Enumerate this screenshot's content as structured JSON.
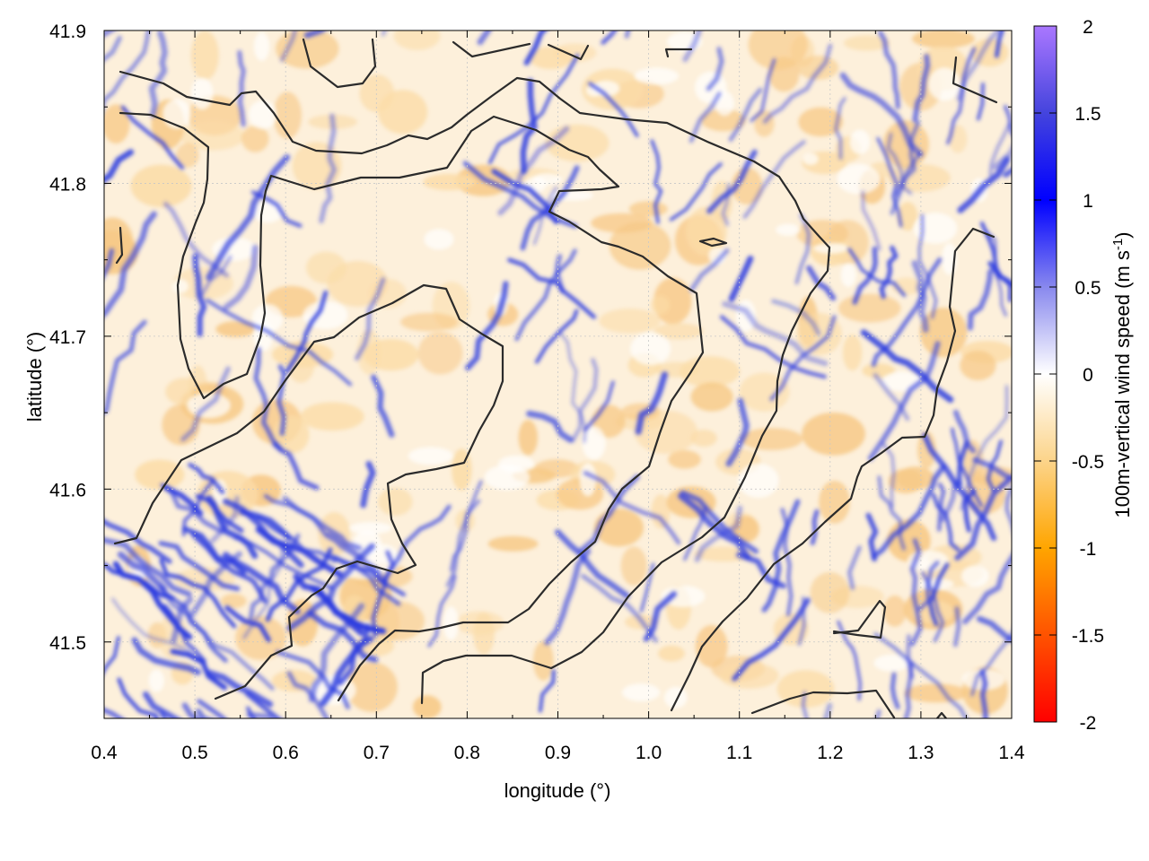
{
  "chart_data": {
    "type": "heatmap",
    "title": "",
    "xlabel": "longitude (°)",
    "ylabel": "latitude (°)",
    "xlim": [
      0.4,
      1.4
    ],
    "ylim": [
      41.45,
      41.9
    ],
    "x_ticks": [
      "0.4",
      "0.5",
      "0.6",
      "0.7",
      "0.8",
      "0.9",
      "1.0",
      "1.1",
      "1.2",
      "1.3",
      "1.4"
    ],
    "y_ticks": [
      "41.5",
      "41.6",
      "41.7",
      "41.8",
      "41.9"
    ],
    "grid": true,
    "colorbar": {
      "label_main": "100m-vertical wind speed (m s",
      "label_sup": "-1",
      "label_end": ")",
      "range": [
        -2,
        2
      ],
      "ticks": [
        "2",
        "1.5",
        "1",
        "0.5",
        "0",
        "-0.5",
        "-1",
        "-1.5",
        "-2"
      ],
      "stops": [
        {
          "value": -2.0,
          "color": "#ff0000"
        },
        {
          "value": -1.0,
          "color": "#ffa500"
        },
        {
          "value": -0.5,
          "color": "#fcd48a"
        },
        {
          "value": 0.0,
          "color": "#ffffff"
        },
        {
          "value": 0.5,
          "color": "#8888ee"
        },
        {
          "value": 1.0,
          "color": "#0000ff"
        },
        {
          "value": 1.5,
          "color": "#4444dd"
        },
        {
          "value": 2.0,
          "color": "#aa77ff"
        }
      ]
    },
    "field_description_values": {
      "background_mean": -0.15,
      "positive_streak_peak": 1.1
    },
    "overlay": "topography contour lines",
    "colors": {
      "contour": "#2b2b2b",
      "positive": "#2b3be0",
      "negative": "#f7c987"
    }
  }
}
